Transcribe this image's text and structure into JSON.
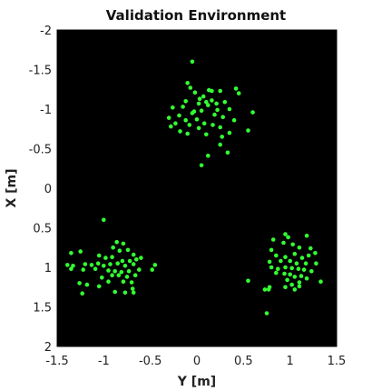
{
  "chart_data": {
    "type": "scatter",
    "title": "Validation Environment",
    "xlabel": "Y [m]",
    "ylabel": "X [m]",
    "xlim": [
      -1.5,
      1.5
    ],
    "ylim": [
      -2,
      2
    ],
    "y_reversed": true,
    "grid": false,
    "background_color": "#000000",
    "point_color": "#33ff33",
    "x_ticks": [
      -1.5,
      -1,
      -0.5,
      0,
      0.5,
      1,
      1.5
    ],
    "x_tick_labels": [
      "-1.5",
      "-1",
      "-0.5",
      "0",
      "0.5",
      "1",
      "1.5"
    ],
    "y_ticks": [
      -2,
      -1.5,
      -1,
      -0.5,
      0,
      0.5,
      1,
      1.5,
      2
    ],
    "y_tick_labels": [
      "-2",
      "-1.5",
      "-1",
      "-0.5",
      "0",
      "0.5",
      "1",
      "1.5",
      "2"
    ],
    "series": [
      {
        "points": [
          [
            -0.05,
            -1.6
          ],
          [
            -0.1,
            -1.33
          ],
          [
            -0.07,
            -1.27
          ],
          [
            -0.02,
            -1.21
          ],
          [
            0.13,
            -1.24
          ],
          [
            0.16,
            -1.23
          ],
          [
            0.25,
            -1.23
          ],
          [
            0.42,
            -1.26
          ],
          [
            0.45,
            -1.2
          ],
          [
            0.07,
            -1.16
          ],
          [
            0.03,
            -1.13
          ],
          [
            -0.12,
            -1.1
          ],
          [
            -0.15,
            -1.03
          ],
          [
            0.02,
            -1.07
          ],
          [
            0.1,
            -1.09
          ],
          [
            0.16,
            -1.11
          ],
          [
            0.21,
            -1.07
          ],
          [
            0.3,
            -1.09
          ],
          [
            0.35,
            -1.0
          ],
          [
            0.6,
            -0.96
          ],
          [
            -0.26,
            -1.02
          ],
          [
            -0.19,
            -0.92
          ],
          [
            -0.05,
            -0.95
          ],
          [
            0.05,
            -0.98
          ],
          [
            0.12,
            -1.05
          ],
          [
            0.22,
            -0.99
          ],
          [
            0.28,
            -0.9
          ],
          [
            0.4,
            -0.86
          ],
          [
            -0.3,
            -0.89
          ],
          [
            -0.23,
            -0.82
          ],
          [
            -0.12,
            -0.86
          ],
          [
            0.0,
            -0.87
          ],
          [
            0.08,
            -0.82
          ],
          [
            0.17,
            -0.8
          ],
          [
            0.25,
            -0.77
          ],
          [
            0.55,
            -0.73
          ],
          [
            -0.28,
            -0.78
          ],
          [
            -0.18,
            -0.72
          ],
          [
            -0.1,
            -0.69
          ],
          [
            0.02,
            -0.76
          ],
          [
            0.1,
            -0.68
          ],
          [
            0.27,
            -0.65
          ],
          [
            0.35,
            -0.7
          ],
          [
            0.25,
            -0.55
          ],
          [
            0.12,
            -0.41
          ],
          [
            0.05,
            -0.29
          ],
          [
            0.33,
            -0.45
          ],
          [
            -0.03,
            -0.97
          ],
          [
            0.19,
            -0.93
          ],
          [
            -0.08,
            -0.8
          ],
          [
            -1.0,
            0.4
          ],
          [
            -0.86,
            0.68
          ],
          [
            -0.79,
            0.7
          ],
          [
            -0.9,
            0.75
          ],
          [
            -0.83,
            0.79
          ],
          [
            -0.74,
            0.78
          ],
          [
            -0.68,
            0.84
          ],
          [
            -1.35,
            0.82
          ],
          [
            -1.25,
            0.8
          ],
          [
            -1.05,
            0.85
          ],
          [
            -0.98,
            0.88
          ],
          [
            -0.91,
            0.87
          ],
          [
            -0.8,
            0.92
          ],
          [
            -0.72,
            0.92
          ],
          [
            -0.65,
            0.9
          ],
          [
            -0.6,
            0.88
          ],
          [
            -1.33,
            0.98
          ],
          [
            -1.39,
            0.97
          ],
          [
            -1.2,
            0.96
          ],
          [
            -1.13,
            0.97
          ],
          [
            -1.06,
            0.95
          ],
          [
            -1.0,
            0.98
          ],
          [
            -0.93,
            0.96
          ],
          [
            -0.85,
            0.95
          ],
          [
            -0.77,
            0.98
          ],
          [
            -0.68,
            0.96
          ],
          [
            -0.45,
            0.97
          ],
          [
            -1.35,
            1.02
          ],
          [
            -1.09,
            1.02
          ],
          [
            -0.95,
            1.04
          ],
          [
            -0.88,
            1.05
          ],
          [
            -0.81,
            1.06
          ],
          [
            -0.73,
            1.05
          ],
          [
            -0.62,
            1.03
          ],
          [
            -0.48,
            1.03
          ],
          [
            -1.22,
            1.03
          ],
          [
            -0.91,
            1.1
          ],
          [
            -0.84,
            1.1
          ],
          [
            -0.75,
            1.12
          ],
          [
            -0.66,
            1.1
          ],
          [
            -1.02,
            1.13
          ],
          [
            -0.95,
            1.18
          ],
          [
            -0.79,
            1.18
          ],
          [
            -0.7,
            1.19
          ],
          [
            -1.18,
            1.22
          ],
          [
            -1.26,
            1.2
          ],
          [
            -0.88,
            1.31
          ],
          [
            -0.77,
            1.32
          ],
          [
            -0.69,
            1.27
          ],
          [
            -0.68,
            1.32
          ],
          [
            -1.23,
            1.33
          ],
          [
            -1.05,
            1.24
          ],
          [
            0.95,
            0.58
          ],
          [
            0.98,
            0.62
          ],
          [
            1.18,
            0.6
          ],
          [
            0.82,
            0.65
          ],
          [
            0.93,
            0.69
          ],
          [
            1.03,
            0.71
          ],
          [
            1.1,
            0.75
          ],
          [
            1.22,
            0.76
          ],
          [
            1.27,
            0.82
          ],
          [
            0.8,
            0.78
          ],
          [
            0.85,
            0.85
          ],
          [
            0.95,
            0.87
          ],
          [
            1.05,
            0.83
          ],
          [
            1.13,
            0.88
          ],
          [
            1.2,
            0.85
          ],
          [
            0.78,
            0.93
          ],
          [
            0.9,
            0.92
          ],
          [
            1.0,
            0.92
          ],
          [
            1.07,
            0.95
          ],
          [
            1.17,
            0.95
          ],
          [
            1.28,
            0.95
          ],
          [
            0.8,
            1.0
          ],
          [
            0.87,
            1.02
          ],
          [
            0.95,
            1.0
          ],
          [
            1.02,
            1.01
          ],
          [
            1.09,
            1.02
          ],
          [
            1.15,
            1.03
          ],
          [
            1.23,
            1.05
          ],
          [
            0.85,
            1.07
          ],
          [
            0.94,
            1.08
          ],
          [
            1.0,
            1.09
          ],
          [
            1.05,
            1.12
          ],
          [
            1.12,
            1.11
          ],
          [
            1.18,
            1.14
          ],
          [
            0.97,
            1.16
          ],
          [
            1.1,
            1.19
          ],
          [
            0.55,
            1.17
          ],
          [
            1.33,
            1.18
          ],
          [
            0.95,
            1.25
          ],
          [
            1.02,
            1.22
          ],
          [
            1.1,
            1.24
          ],
          [
            0.73,
            1.28
          ],
          [
            0.77,
            1.28
          ],
          [
            1.05,
            1.28
          ],
          [
            0.78,
            1.25
          ],
          [
            0.75,
            1.58
          ]
        ]
      }
    ]
  }
}
